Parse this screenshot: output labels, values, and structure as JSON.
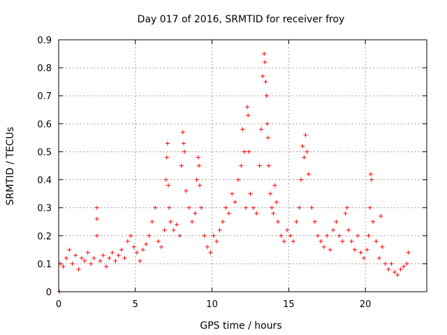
{
  "chart_data": {
    "type": "scatter",
    "title": "Day 017 of 2016, SRMTID for receiver froy",
    "xlabel": "GPS time / hours",
    "ylabel": "SRMTID / TECUs",
    "xlim": [
      0,
      24
    ],
    "ylim": [
      0,
      0.9
    ],
    "xticks": [
      0,
      5,
      10,
      15,
      20
    ],
    "xtick_labels": [
      "0",
      "5",
      "10",
      "15",
      "20"
    ],
    "yticks": [
      0,
      0.1,
      0.2,
      0.3,
      0.4,
      0.5,
      0.6,
      0.7,
      0.8,
      0.9
    ],
    "ytick_labels": [
      "0",
      "0.1",
      "0.2",
      "0.3",
      "0.4",
      "0.5",
      "0.6",
      "0.7",
      "0.8",
      "0.9"
    ],
    "grid": true,
    "marker": "plus",
    "color": "#ff0000",
    "series": [
      {
        "name": "SRMTID",
        "x": [
          0.05,
          0.1,
          0.3,
          0.5,
          0.7,
          0.9,
          1.1,
          1.3,
          1.5,
          1.7,
          1.9,
          2.1,
          2.3,
          2.5,
          2.5,
          2.5,
          2.7,
          2.9,
          3.1,
          3.3,
          3.5,
          3.7,
          3.9,
          4.1,
          4.3,
          4.5,
          4.7,
          4.9,
          5.1,
          5.3,
          5.5,
          5.7,
          5.9,
          6.1,
          6.3,
          6.5,
          6.7,
          6.9,
          7.0,
          7.05,
          7.1,
          7.15,
          7.2,
          7.3,
          7.5,
          7.7,
          7.9,
          8.0,
          8.1,
          8.15,
          8.2,
          8.3,
          8.5,
          8.7,
          8.9,
          9.0,
          9.1,
          9.15,
          9.2,
          9.3,
          9.5,
          9.7,
          9.9,
          10.1,
          10.3,
          10.5,
          10.7,
          10.9,
          11.1,
          11.3,
          11.5,
          11.7,
          11.9,
          12.0,
          12.1,
          12.2,
          12.3,
          12.35,
          12.4,
          12.5,
          12.7,
          12.9,
          13.1,
          13.2,
          13.3,
          13.4,
          13.45,
          13.5,
          13.55,
          13.6,
          13.65,
          13.7,
          13.8,
          13.9,
          14.0,
          14.1,
          14.2,
          14.3,
          14.5,
          14.7,
          14.9,
          15.1,
          15.3,
          15.5,
          15.7,
          15.8,
          15.9,
          16.0,
          16.1,
          16.2,
          16.3,
          16.5,
          16.7,
          16.9,
          17.1,
          17.3,
          17.5,
          17.7,
          17.9,
          18.1,
          18.3,
          18.5,
          18.7,
          18.8,
          18.9,
          19.1,
          19.3,
          19.5,
          19.7,
          19.9,
          20.1,
          20.2,
          20.3,
          20.35,
          20.4,
          20.5,
          20.7,
          20.9,
          21.0,
          21.1,
          21.3,
          21.5,
          21.7,
          21.9,
          22.1,
          22.3,
          22.5,
          22.7,
          22.8
        ],
        "y": [
          0.0,
          0.1,
          0.09,
          0.12,
          0.15,
          0.1,
          0.13,
          0.08,
          0.12,
          0.11,
          0.14,
          0.1,
          0.12,
          0.3,
          0.26,
          0.2,
          0.11,
          0.13,
          0.09,
          0.12,
          0.14,
          0.11,
          0.13,
          0.15,
          0.12,
          0.18,
          0.2,
          0.16,
          0.14,
          0.11,
          0.15,
          0.17,
          0.2,
          0.25,
          0.3,
          0.18,
          0.16,
          0.22,
          0.4,
          0.48,
          0.53,
          0.38,
          0.3,
          0.25,
          0.22,
          0.24,
          0.2,
          0.45,
          0.57,
          0.53,
          0.5,
          0.36,
          0.3,
          0.25,
          0.28,
          0.4,
          0.48,
          0.45,
          0.38,
          0.3,
          0.2,
          0.16,
          0.14,
          0.2,
          0.18,
          0.22,
          0.25,
          0.3,
          0.28,
          0.35,
          0.32,
          0.4,
          0.45,
          0.58,
          0.5,
          0.3,
          0.66,
          0.63,
          0.5,
          0.35,
          0.3,
          0.28,
          0.45,
          0.58,
          0.77,
          0.85,
          0.82,
          0.75,
          0.7,
          0.6,
          0.55,
          0.45,
          0.35,
          0.3,
          0.28,
          0.38,
          0.32,
          0.25,
          0.2,
          0.18,
          0.22,
          0.2,
          0.18,
          0.25,
          0.3,
          0.4,
          0.52,
          0.48,
          0.56,
          0.5,
          0.42,
          0.3,
          0.25,
          0.2,
          0.18,
          0.16,
          0.2,
          0.15,
          0.22,
          0.25,
          0.2,
          0.18,
          0.28,
          0.3,
          0.22,
          0.18,
          0.15,
          0.2,
          0.14,
          0.12,
          0.15,
          0.2,
          0.3,
          0.42,
          0.4,
          0.25,
          0.18,
          0.12,
          0.27,
          0.16,
          0.1,
          0.08,
          0.1,
          0.07,
          0.06,
          0.08,
          0.09,
          0.1,
          0.14
        ]
      }
    ]
  }
}
